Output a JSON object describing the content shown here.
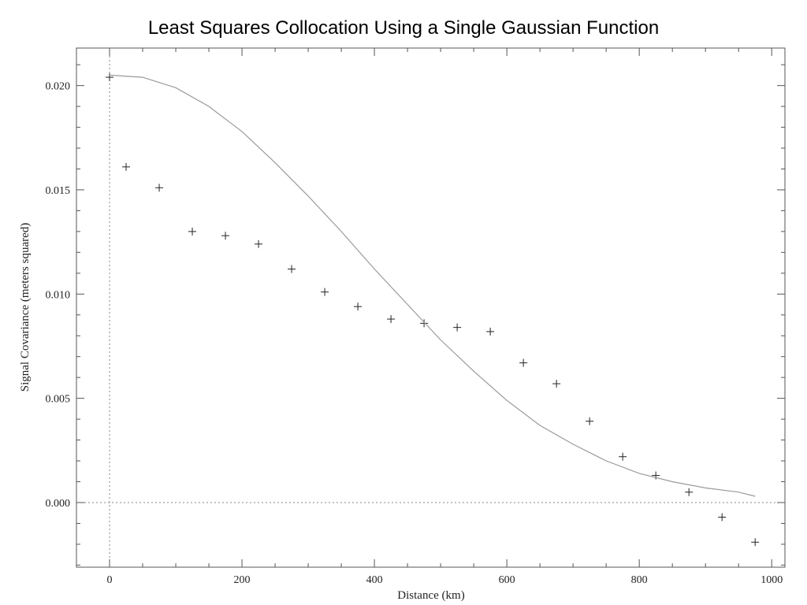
{
  "chart_data": {
    "type": "scatter",
    "title": "Least Squares Collocation Using a Single Gaussian Function",
    "xlabel": "Distance (km)",
    "ylabel": "Signal Covariance (meters squared)",
    "xlim": [
      -50,
      1020
    ],
    "ylim": [
      -0.0031,
      0.0218
    ],
    "xticks": [
      0,
      200,
      400,
      600,
      800,
      1000
    ],
    "xtick_labels": [
      "0",
      "200",
      "400",
      "600",
      "800",
      "1000"
    ],
    "yticks": [
      0.0,
      0.005,
      0.01,
      0.015,
      0.02
    ],
    "ytick_labels": [
      "0.000",
      "0.005",
      "0.010",
      "0.015",
      "0.020"
    ],
    "grid": false,
    "reference_lines": {
      "x0": 0,
      "y0": 0
    },
    "series": [
      {
        "kind": "markers",
        "marker": "plus",
        "x": [
          0,
          25,
          75,
          125,
          175,
          225,
          275,
          325,
          375,
          425,
          475,
          525,
          575,
          625,
          675,
          725,
          775,
          825,
          875,
          925,
          975
        ],
        "y": [
          0.0204,
          0.0161,
          0.0151,
          0.013,
          0.0128,
          0.0124,
          0.0112,
          0.0101,
          0.0094,
          0.0088,
          0.0086,
          0.0084,
          0.0082,
          0.0067,
          0.0057,
          0.0039,
          0.0022,
          0.0013,
          0.0005,
          -0.0007,
          -0.0019
        ]
      },
      {
        "kind": "line",
        "x": [
          0,
          50,
          100,
          150,
          200,
          250,
          300,
          350,
          400,
          450,
          500,
          550,
          600,
          650,
          700,
          750,
          800,
          850,
          900,
          950,
          975
        ],
        "y": [
          0.0205,
          0.0204,
          0.0199,
          0.019,
          0.0178,
          0.0163,
          0.0147,
          0.013,
          0.0112,
          0.0095,
          0.0078,
          0.0063,
          0.0049,
          0.0037,
          0.0028,
          0.002,
          0.0014,
          0.001,
          0.0007,
          0.0005,
          0.0003
        ]
      }
    ],
    "colors": {
      "markers": "#222222",
      "line": "#9a9a9a",
      "frame": "#555555",
      "reference": "#888888"
    }
  }
}
